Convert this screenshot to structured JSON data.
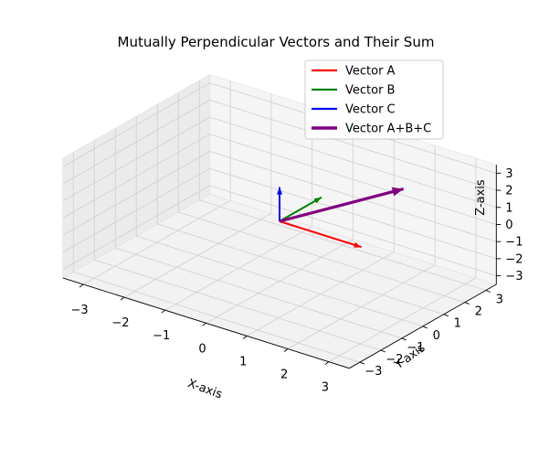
{
  "chart_data": {
    "type": "line",
    "projection": "3d",
    "title": "Mutually Perpendicular Vectors and Their Sum",
    "xlabel": "X-axis",
    "ylabel": "Y-axis",
    "zlabel": "Z-axis",
    "xlim": [
      -3.5,
      3.5
    ],
    "ylim": [
      -3.5,
      3.5
    ],
    "zlim": [
      -3.5,
      3.5
    ],
    "xticks": [
      -3,
      -2,
      -1,
      0,
      1,
      2,
      3
    ],
    "yticks": [
      -3,
      -2,
      -1,
      0,
      1,
      2,
      3
    ],
    "zticks": [
      -3,
      -2,
      -1,
      0,
      1,
      2,
      3
    ],
    "grid": true,
    "legend_position": "top-right",
    "series": [
      {
        "name": "Vector A",
        "color": "#ff0000",
        "origin": [
          0,
          0,
          0
        ],
        "vector": [
          2,
          0,
          0
        ]
      },
      {
        "name": "Vector B",
        "color": "#008000",
        "origin": [
          0,
          0,
          0
        ],
        "vector": [
          0,
          2,
          0
        ]
      },
      {
        "name": "Vector C",
        "color": "#0000ff",
        "origin": [
          0,
          0,
          0
        ],
        "vector": [
          0,
          0,
          2
        ]
      },
      {
        "name": "Vector A+B+C",
        "color": "#800080",
        "origin": [
          0,
          0,
          0
        ],
        "vector": [
          2,
          2,
          2
        ]
      }
    ]
  }
}
